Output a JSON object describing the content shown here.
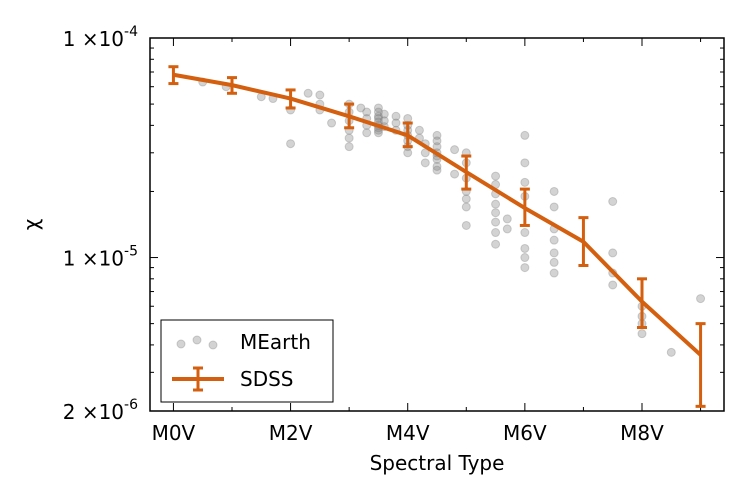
{
  "chart_data": {
    "type": "line",
    "title": "",
    "xlabel": "Spectral Type",
    "ylabel": "χ",
    "yscale": "log",
    "xlim": [
      -0.4,
      9.4
    ],
    "ylim": [
      2e-06,
      0.0001
    ],
    "colors": {
      "sdss": "#d45f0e",
      "mearth": "#808080",
      "axes": "#000000"
    },
    "x_ticks": [
      {
        "value": 0,
        "label": "M0V"
      },
      {
        "value": 2,
        "label": "M2V"
      },
      {
        "value": 4,
        "label": "M4V"
      },
      {
        "value": 6,
        "label": "M6V"
      },
      {
        "value": 8,
        "label": "M8V"
      }
    ],
    "y_ticks": [
      {
        "value": 0.0001,
        "base": "1 ×10",
        "exp": "-4"
      },
      {
        "value": 1e-05,
        "base": "1 ×10",
        "exp": "-5"
      },
      {
        "value": 2e-06,
        "base": "2 ×10",
        "exp": "-6"
      }
    ],
    "legend": {
      "position": "lower-left",
      "entries": [
        {
          "label": "MEarth",
          "marker": "scatter"
        },
        {
          "label": "SDSS",
          "marker": "errorbar-line"
        }
      ]
    },
    "series": [
      {
        "name": "SDSS",
        "kind": "line-with-errorbars",
        "x": [
          0,
          1,
          2,
          3,
          4,
          5,
          6,
          7,
          8,
          9
        ],
        "y": [
          6.8e-05,
          6.1e-05,
          5.3e-05,
          4.4e-05,
          3.6e-05,
          2.45e-05,
          1.68e-05,
          1.18e-05,
          6.3e-06,
          3.6e-06
        ],
        "y_low": [
          6.2e-05,
          5.6e-05,
          4.8e-05,
          3.9e-05,
          3.2e-05,
          2.05e-05,
          1.4e-05,
          9.2e-06,
          4.8e-06,
          2.1e-06
        ],
        "y_high": [
          7.4e-05,
          6.6e-05,
          5.8e-05,
          5e-05,
          4.1e-05,
          2.9e-05,
          2.05e-05,
          1.52e-05,
          8e-06,
          5e-06
        ]
      },
      {
        "name": "MEarth",
        "kind": "scatter",
        "points": [
          [
            0.5,
            6.3e-05
          ],
          [
            0.9,
            6e-05
          ],
          [
            1.5,
            5.4e-05
          ],
          [
            1.7,
            5.3e-05
          ],
          [
            2.0,
            4.7e-05
          ],
          [
            2.0,
            3.3e-05
          ],
          [
            2.3,
            5.6e-05
          ],
          [
            2.5,
            5.5e-05
          ],
          [
            2.5,
            5e-05
          ],
          [
            2.5,
            4.7e-05
          ],
          [
            2.7,
            4.1e-05
          ],
          [
            3.0,
            5e-05
          ],
          [
            3.0,
            4.6e-05
          ],
          [
            3.0,
            4.2e-05
          ],
          [
            3.0,
            3.8e-05
          ],
          [
            3.0,
            3.5e-05
          ],
          [
            3.0,
            3.2e-05
          ],
          [
            3.2,
            4.8e-05
          ],
          [
            3.3,
            4.6e-05
          ],
          [
            3.3,
            4.3e-05
          ],
          [
            3.3,
            4e-05
          ],
          [
            3.3,
            3.7e-05
          ],
          [
            3.5,
            4.8e-05
          ],
          [
            3.5,
            4.6e-05
          ],
          [
            3.5,
            4.4e-05
          ],
          [
            3.5,
            4.3e-05
          ],
          [
            3.5,
            4.15e-05
          ],
          [
            3.5,
            4e-05
          ],
          [
            3.5,
            3.9e-05
          ],
          [
            3.5,
            3.8e-05
          ],
          [
            3.5,
            3.7e-05
          ],
          [
            3.6,
            4.5e-05
          ],
          [
            3.6,
            4.2e-05
          ],
          [
            3.6,
            3.95e-05
          ],
          [
            3.8,
            4.4e-05
          ],
          [
            3.8,
            4.1e-05
          ],
          [
            3.8,
            3.8e-05
          ],
          [
            4.0,
            4.3e-05
          ],
          [
            4.0,
            4e-05
          ],
          [
            4.0,
            3.8e-05
          ],
          [
            4.0,
            3.6e-05
          ],
          [
            4.0,
            3.4e-05
          ],
          [
            4.0,
            3.2e-05
          ],
          [
            4.0,
            3e-05
          ],
          [
            4.2,
            3.8e-05
          ],
          [
            4.2,
            3.5e-05
          ],
          [
            4.3,
            3.3e-05
          ],
          [
            4.3,
            3e-05
          ],
          [
            4.3,
            2.7e-05
          ],
          [
            4.5,
            3.6e-05
          ],
          [
            4.5,
            3.4e-05
          ],
          [
            4.5,
            3.2e-05
          ],
          [
            4.5,
            3e-05
          ],
          [
            4.5,
            2.9e-05
          ],
          [
            4.5,
            2.8e-05
          ],
          [
            4.5,
            2.6e-05
          ],
          [
            4.5,
            2.5e-05
          ],
          [
            4.8,
            3.1e-05
          ],
          [
            4.8,
            2.4e-05
          ],
          [
            5.0,
            3e-05
          ],
          [
            5.0,
            2.7e-05
          ],
          [
            5.0,
            2.3e-05
          ],
          [
            5.0,
            2e-05
          ],
          [
            5.0,
            1.85e-05
          ],
          [
            5.0,
            1.7e-05
          ],
          [
            5.0,
            1.4e-05
          ],
          [
            5.5,
            2.35e-05
          ],
          [
            5.5,
            2.15e-05
          ],
          [
            5.5,
            1.95e-05
          ],
          [
            5.5,
            1.75e-05
          ],
          [
            5.5,
            1.6e-05
          ],
          [
            5.5,
            1.45e-05
          ],
          [
            5.5,
            1.3e-05
          ],
          [
            5.5,
            1.15e-05
          ],
          [
            5.7,
            1.5e-05
          ],
          [
            5.7,
            1.35e-05
          ],
          [
            6.0,
            3.6e-05
          ],
          [
            6.0,
            2.7e-05
          ],
          [
            6.0,
            2.2e-05
          ],
          [
            6.0,
            1.9e-05
          ],
          [
            6.0,
            1.3e-05
          ],
          [
            6.0,
            1.1e-05
          ],
          [
            6.0,
            1e-05
          ],
          [
            6.0,
            9e-06
          ],
          [
            6.5,
            2e-05
          ],
          [
            6.5,
            1.7e-05
          ],
          [
            6.5,
            1.35e-05
          ],
          [
            6.5,
            1.2e-05
          ],
          [
            6.5,
            1.05e-05
          ],
          [
            6.5,
            9.5e-06
          ],
          [
            6.5,
            8.5e-06
          ],
          [
            7.5,
            1.8e-05
          ],
          [
            7.5,
            1.05e-05
          ],
          [
            7.5,
            8.5e-06
          ],
          [
            7.5,
            7.5e-06
          ],
          [
            8.0,
            6e-06
          ],
          [
            8.0,
            5.4e-06
          ],
          [
            8.0,
            5e-06
          ],
          [
            8.0,
            4.5e-06
          ],
          [
            8.5,
            3.7e-06
          ],
          [
            9.0,
            6.5e-06
          ]
        ]
      }
    ]
  }
}
